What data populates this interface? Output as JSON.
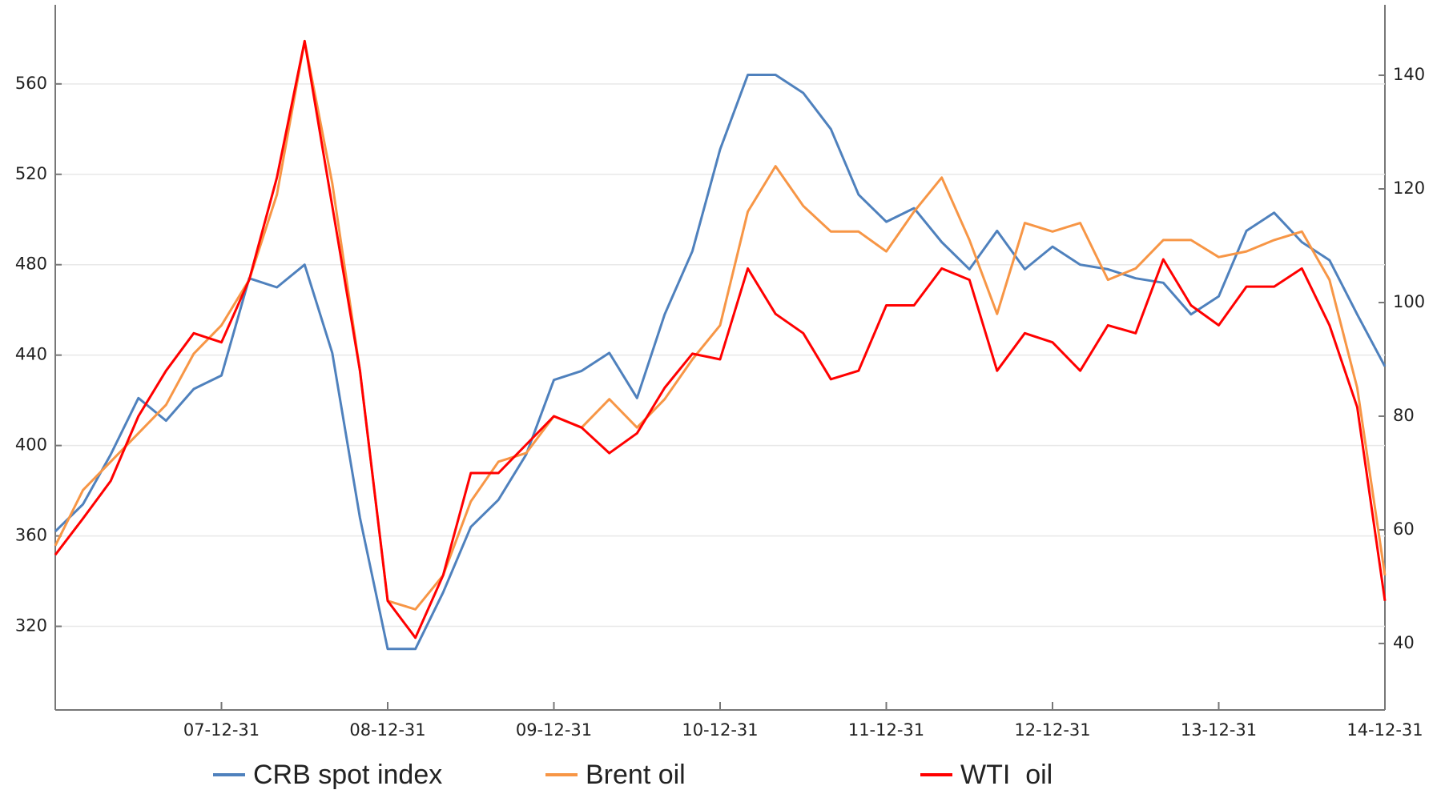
{
  "chart_data": {
    "type": "line",
    "x": [
      "06-12-31",
      "07-02-28",
      "07-04-30",
      "07-06-30",
      "07-08-31",
      "07-10-31",
      "07-12-31",
      "08-02-29",
      "08-04-30",
      "08-06-30",
      "08-08-31",
      "08-10-31",
      "08-12-31",
      "09-02-28",
      "09-04-30",
      "09-06-30",
      "09-08-31",
      "09-10-31",
      "09-12-31",
      "10-02-28",
      "10-04-30",
      "10-06-30",
      "10-08-31",
      "10-10-31",
      "10-12-31",
      "11-02-28",
      "11-04-30",
      "11-06-30",
      "11-08-31",
      "11-10-31",
      "11-12-31",
      "12-02-29",
      "12-04-30",
      "12-06-30",
      "12-08-31",
      "12-10-31",
      "12-12-31",
      "13-02-28",
      "13-04-30",
      "13-06-30",
      "13-08-31",
      "13-10-31",
      "13-12-31",
      "14-02-28",
      "14-04-30",
      "14-06-30",
      "14-08-31",
      "14-10-31",
      "14-12-31"
    ],
    "xticks": [
      "07-12-31",
      "08-12-31",
      "09-12-31",
      "10-12-31",
      "11-12-31",
      "12-12-31",
      "13-12-31",
      "14-12-31"
    ],
    "ylim": [
      283,
      595
    ],
    "yticks": [
      320,
      360,
      400,
      440,
      480,
      520,
      560
    ],
    "y2lim": [
      28.3,
      152.4
    ],
    "y2ticks": [
      40,
      60,
      80,
      100,
      120,
      140
    ],
    "grid": true,
    "series": [
      {
        "name": "CRB spot index",
        "color": "#4f81bd",
        "axis": "y",
        "values": [
          362,
          374,
          396,
          421,
          411,
          425,
          431,
          474,
          470,
          480,
          441,
          368,
          310,
          310,
          335,
          364,
          376,
          396,
          429,
          433,
          441,
          421,
          458,
          486,
          531,
          564,
          564,
          556,
          540,
          511,
          499,
          505,
          490,
          478,
          495,
          478,
          488,
          480,
          478,
          474,
          472,
          458,
          466,
          495,
          503,
          490,
          482,
          458,
          435
        ]
      },
      {
        "name": "Brent oil",
        "color": "#f79646",
        "axis": "y2",
        "values": [
          57.2,
          67,
          72,
          77,
          82,
          91,
          96,
          104,
          119,
          146,
          121,
          88,
          47.5,
          46,
          52,
          65,
          72,
          73.5,
          80,
          78,
          83,
          78,
          83,
          90,
          96,
          116,
          124,
          117,
          112.5,
          112.5,
          109,
          116,
          122,
          111,
          98,
          114,
          112.5,
          114,
          104,
          106,
          111,
          111,
          108,
          109,
          111,
          112.5,
          104,
          85,
          52
        ]
      },
      {
        "name": "WTI  oil",
        "color": "#ff0000",
        "axis": "y2",
        "values": [
          55.6,
          62,
          68.6,
          80,
          88,
          94.6,
          93,
          104,
          122,
          146,
          117,
          88,
          47.5,
          41,
          52,
          70,
          70,
          75,
          80,
          78,
          73.5,
          77,
          85,
          91,
          90,
          106,
          98,
          94.6,
          86.5,
          88,
          99.5,
          99.5,
          106,
          104,
          88,
          94.6,
          93,
          88,
          96,
          94.6,
          107.6,
          99.5,
          96,
          102.8,
          102.8,
          106,
          96,
          81.6,
          47.5
        ]
      }
    ]
  }
}
